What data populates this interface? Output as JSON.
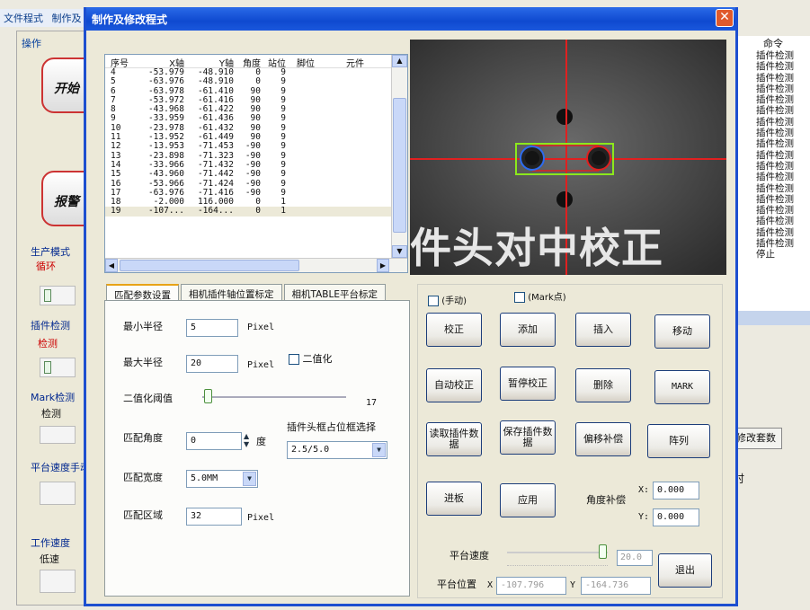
{
  "background_app": {
    "menu": [
      "文件程式",
      "制作及"
    ],
    "operation_label": "操作",
    "start_button": "开始",
    "alarm_button": "报警",
    "production_mode_label": "生产模式",
    "production_mode_value": "循环",
    "insert_check_label": "插件检测",
    "insert_check_value": "检测",
    "mark_check_label": "Mark检测",
    "mark_check_value": "检测",
    "platform_speed_label": "平台速度手动",
    "work_speed_label": "工作速度",
    "work_speed_value": "低速",
    "command_header": "命令",
    "commands": [
      "插件检测",
      "插件检测",
      "插件检测",
      "插件检测",
      "插件检测",
      "插件检测",
      "插件检测",
      "插件检测",
      "插件检测",
      "插件检测",
      "插件检测",
      "插件检测",
      "插件检测",
      "插件检测",
      "插件检测",
      "插件检测",
      "插件检测",
      "插件检测",
      "停止"
    ],
    "modify_button": "修改套数",
    "time_label": "时"
  },
  "dialog": {
    "title": "制作及修改程式",
    "close_glyph": "✕",
    "list": {
      "columns": [
        "序号",
        "X轴",
        "Y轴",
        "角度",
        "站位",
        "脚位",
        "元件"
      ],
      "rows": [
        [
          "4",
          "-53.979",
          "-48.910",
          "0",
          "9",
          "",
          ""
        ],
        [
          "5",
          "-63.976",
          "-48.910",
          "0",
          "9",
          "",
          ""
        ],
        [
          "6",
          "-63.978",
          "-61.410",
          "90",
          "9",
          "",
          ""
        ],
        [
          "7",
          "-53.972",
          "-61.416",
          "90",
          "9",
          "",
          ""
        ],
        [
          "8",
          "-43.968",
          "-61.422",
          "90",
          "9",
          "",
          ""
        ],
        [
          "9",
          "-33.959",
          "-61.436",
          "90",
          "9",
          "",
          ""
        ],
        [
          "10",
          "-23.978",
          "-61.432",
          "90",
          "9",
          "",
          ""
        ],
        [
          "11",
          "-13.952",
          "-61.449",
          "90",
          "9",
          "",
          ""
        ],
        [
          "12",
          "-13.953",
          "-71.453",
          "-90",
          "9",
          "",
          ""
        ],
        [
          "13",
          "-23.898",
          "-71.323",
          "-90",
          "9",
          "",
          ""
        ],
        [
          "14",
          "-33.966",
          "-71.432",
          "-90",
          "9",
          "",
          ""
        ],
        [
          "15",
          "-43.960",
          "-71.442",
          "-90",
          "9",
          "",
          ""
        ],
        [
          "16",
          "-53.966",
          "-71.424",
          "-90",
          "9",
          "",
          ""
        ],
        [
          "17",
          "-63.976",
          "-71.416",
          "-90",
          "9",
          "",
          ""
        ],
        [
          "18",
          "-2.000",
          "116.000",
          "0",
          "1",
          "",
          ""
        ],
        [
          "19",
          "-107...",
          "-164...",
          "0",
          "1",
          "",
          ""
        ]
      ]
    },
    "camera_overlay_text": "件头对中校正",
    "tabs": [
      "匹配参数设置",
      "相机插件轴位置标定",
      "相机TABLE平台标定"
    ],
    "params": {
      "min_radius_label": "最小半径",
      "min_radius_value": "5",
      "min_radius_unit": "Pixel",
      "max_radius_label": "最大半径",
      "max_radius_value": "20",
      "max_radius_unit": "Pixel",
      "binarize_label": "二值化",
      "threshold_label": "二值化阈值",
      "threshold_value": "17",
      "match_angle_label": "匹配角度",
      "match_angle_value": "0",
      "match_angle_unit": "度",
      "frame_select_label": "插件头框占位框选择",
      "frame_select_value": "2.5/5.0",
      "match_width_label": "匹配宽度",
      "match_width_value": "5.0MM",
      "match_area_label": "匹配区域",
      "match_area_value": "32",
      "match_area_unit": "Pixel"
    },
    "manual_label": "(手动)",
    "mark_label": "(Mark点)",
    "buttons": {
      "correct": "校正",
      "add": "添加",
      "insert": "插入",
      "move": "移动",
      "auto_correct": "自动校正",
      "pause_correct": "暂停校正",
      "delete": "删除",
      "mark": "MARK",
      "read_data": "读取插件数据",
      "save_data": "保存插件数据",
      "offset_comp": "偏移补偿",
      "array": "阵列",
      "feed": "进板",
      "apply": "应用"
    },
    "angle_comp_label": "角度补偿",
    "angle_x_label": "X:",
    "angle_x_value": "0.000",
    "angle_y_label": "Y:",
    "angle_y_value": "0.000",
    "platform_speed_label": "平台速度",
    "platform_speed_value": "20.0",
    "platform_pos_label": "平台位置",
    "pos_x_label": "X",
    "pos_x_value": "-107.796",
    "pos_y_label": "Y",
    "pos_y_value": "-164.736",
    "exit_button": "退出"
  }
}
